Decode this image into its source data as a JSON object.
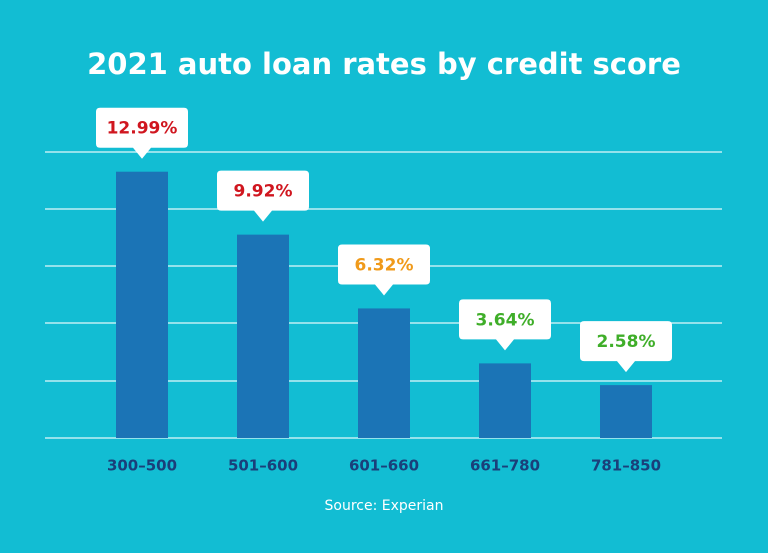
{
  "chart_data": {
    "type": "bar",
    "title": "2021 auto loan rates by credit score",
    "categories": [
      "300–500",
      "501–600",
      "601–660",
      "661–780",
      "781–850"
    ],
    "values": [
      12.99,
      9.92,
      6.32,
      3.64,
      2.58
    ],
    "value_labels": [
      "12.99%",
      "9.92%",
      "6.32%",
      "3.64%",
      "2.58%"
    ],
    "label_colors": [
      "#d0161f",
      "#d0161f",
      "#f09a1a",
      "#3fae29",
      "#3fae29"
    ],
    "color": "#1b74b6",
    "ylim": [
      0,
      14
    ],
    "source": "Source: Experian"
  }
}
